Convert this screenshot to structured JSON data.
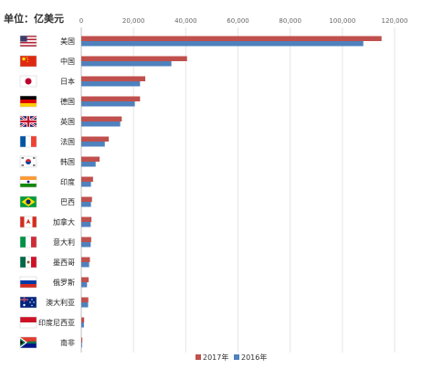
{
  "unit_label": "单位：亿美元",
  "chart_data": {
    "type": "bar",
    "orientation": "horizontal",
    "categories": [
      "美国",
      "中国",
      "日本",
      "德国",
      "英国",
      "法国",
      "韩国",
      "印度",
      "巴西",
      "加拿大",
      "意大利",
      "墨西哥",
      "俄罗斯",
      "澳大利亚",
      "印度尼西亚",
      "南非"
    ],
    "flag_icons": [
      "us-flag-icon",
      "cn-flag-icon",
      "jp-flag-icon",
      "de-flag-icon",
      "gb-flag-icon",
      "fr-flag-icon",
      "kr-flag-icon",
      "in-flag-icon",
      "br-flag-icon",
      "ca-flag-icon",
      "it-flag-icon",
      "mx-flag-icon",
      "ru-flag-icon",
      "au-flag-icon",
      "id-flag-icon",
      "za-flag-icon"
    ],
    "series": [
      {
        "name": "2017年",
        "color": "#c0504d",
        "values": [
          115000,
          40500,
          24500,
          22500,
          15500,
          10500,
          7000,
          4500,
          4100,
          3900,
          3800,
          3300,
          2800,
          2700,
          1100,
          400
        ]
      },
      {
        "name": "2016年",
        "color": "#4f81bd",
        "values": [
          108000,
          34500,
          22500,
          20500,
          14900,
          9000,
          5500,
          3700,
          3700,
          3600,
          3600,
          3000,
          2200,
          2600,
          1000,
          300
        ]
      }
    ],
    "xlim": [
      0,
      120000
    ],
    "xticks": [
      0,
      20000,
      40000,
      60000,
      80000,
      100000,
      120000
    ],
    "xtick_labels": [
      "0",
      "20,000",
      "40,000",
      "60,000",
      "80,000",
      "100,000",
      "120,000"
    ],
    "grid": true,
    "legend_position": "bottom"
  }
}
